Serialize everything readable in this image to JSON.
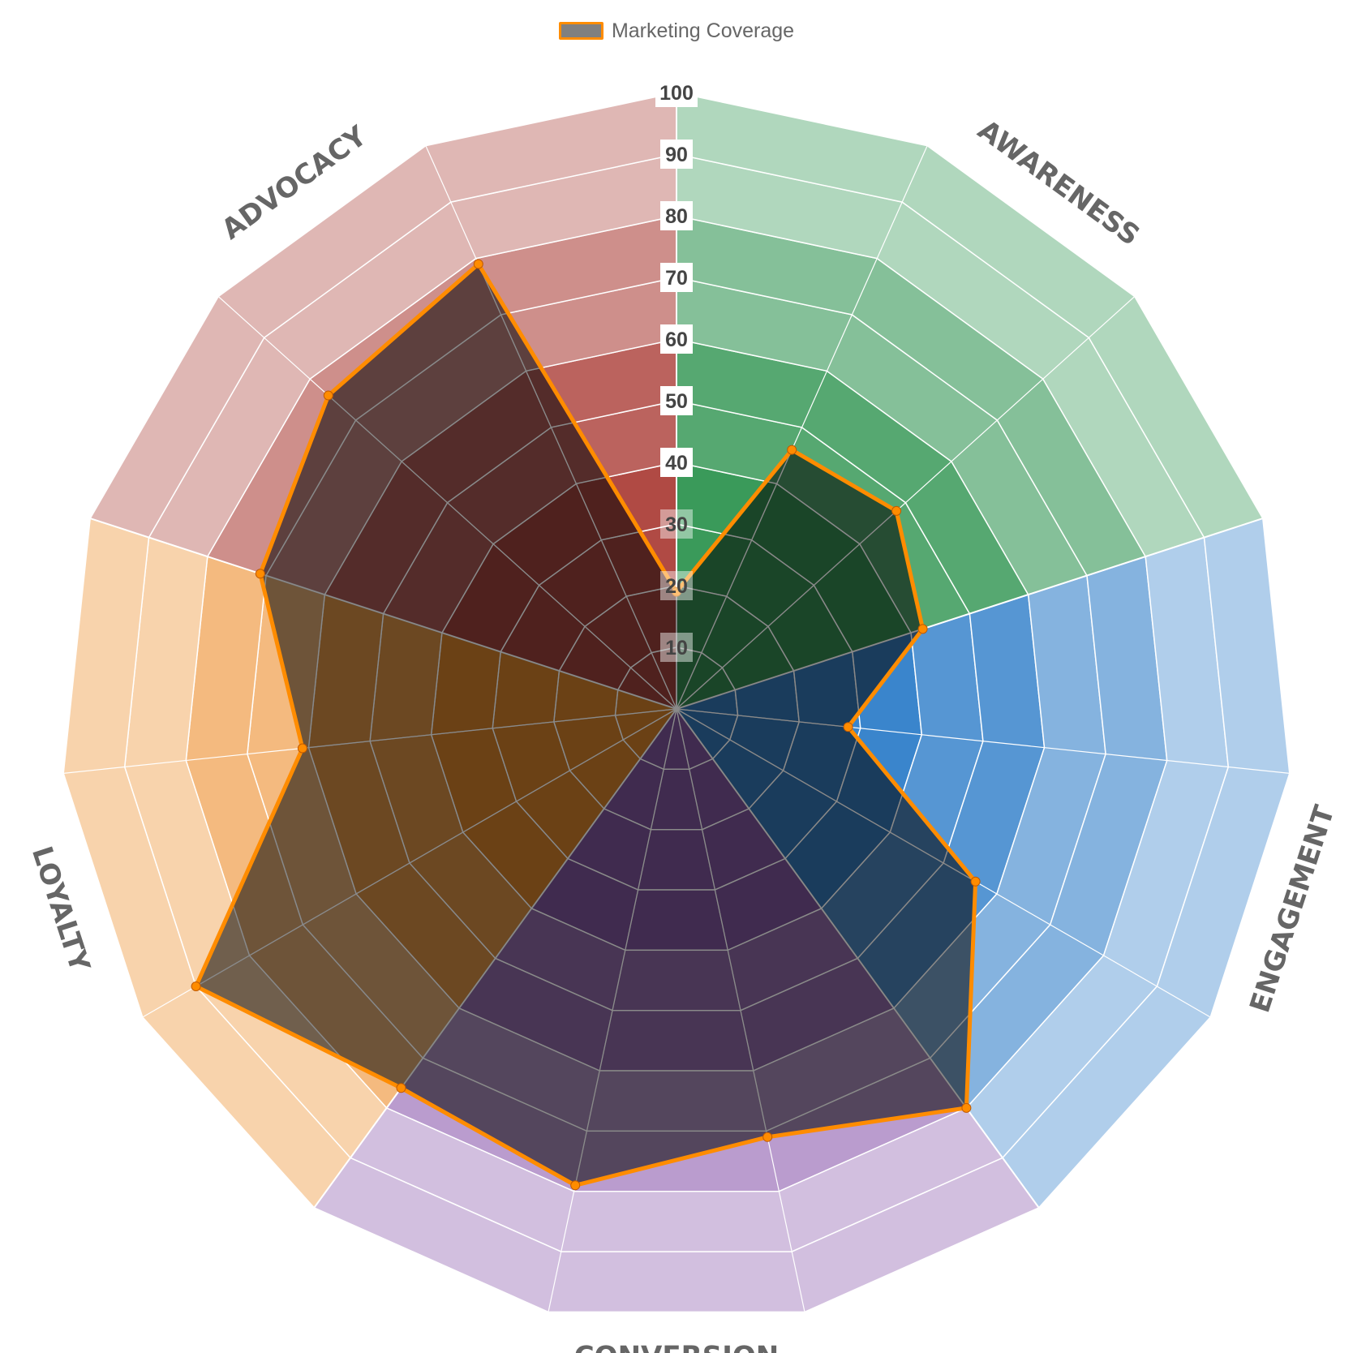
{
  "chart_data": {
    "type": "radar",
    "legend": [
      {
        "name": "Marketing Coverage",
        "fill": "#808080",
        "stroke": "#ff8c00"
      }
    ],
    "legend_position": "top-center",
    "sectors": [
      {
        "name": "AWARENESS",
        "color": "#3a9a5a"
      },
      {
        "name": "ENGAGEMENT",
        "color": "#3a85cc"
      },
      {
        "name": "CONVERSION",
        "color": "#8f60b0"
      },
      {
        "name": "LOYALTY",
        "color": "#ee9030"
      },
      {
        "name": "ADVOCACY",
        "color": "#b04a44"
      }
    ],
    "axes_count": 15,
    "axes_per_sector": 3,
    "r_range": [
      0,
      100
    ],
    "ticks": [
      "10",
      "20",
      "30",
      "40",
      "50",
      "60",
      "70",
      "80",
      "90",
      "100"
    ],
    "series": [
      {
        "name": "Marketing Coverage",
        "values": [
          19,
          46,
          48,
          42,
          28,
          56,
          80,
          71,
          79,
          76,
          90,
          61,
          71,
          76,
          79
        ]
      }
    ]
  }
}
